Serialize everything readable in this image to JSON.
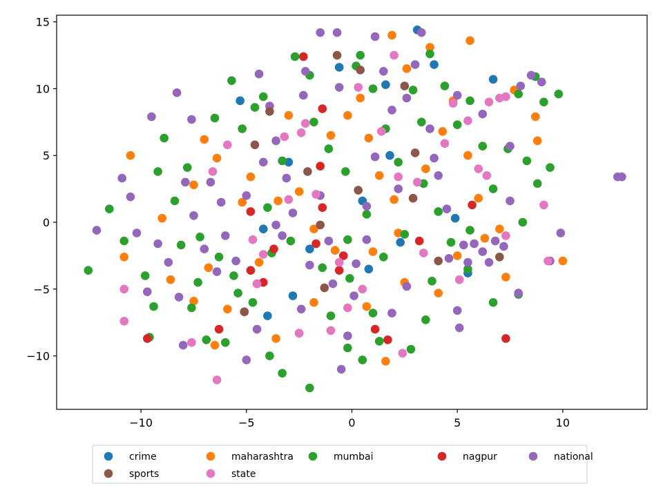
{
  "chart_data": {
    "type": "scatter",
    "title": "",
    "xlabel": "",
    "ylabel": "",
    "xlim": [
      -14,
      14
    ],
    "ylim": [
      -14,
      15.5
    ],
    "xticks": [
      -10,
      -5,
      0,
      5,
      10
    ],
    "yticks": [
      -10,
      -5,
      0,
      5,
      10,
      15
    ],
    "xtick_labels": [
      "−10",
      "−5",
      "0",
      "5",
      "10"
    ],
    "ytick_labels": [
      "−10",
      "−5",
      "0",
      "5",
      "10",
      "15"
    ],
    "grid": false,
    "legend_position": "bottom-center",
    "series": [
      {
        "name": "crime",
        "color": "#1f77b4",
        "points": [
          [
            -5.3,
            9.1
          ],
          [
            -0.6,
            11.6
          ],
          [
            1.6,
            10.3
          ],
          [
            3.1,
            14.4
          ],
          [
            3.9,
            11.8
          ],
          [
            6.7,
            10.7
          ],
          [
            4.9,
            0.3
          ],
          [
            5.5,
            -3.8
          ],
          [
            -3.0,
            4.5
          ],
          [
            -4.2,
            -0.5
          ],
          [
            -4.0,
            -7.0
          ],
          [
            -2.8,
            -5.5
          ],
          [
            1.8,
            5.0
          ],
          [
            0.5,
            1.6
          ],
          [
            2.3,
            -1.5
          ],
          [
            -2.0,
            -2.0
          ],
          [
            0.8,
            -3.5
          ]
        ]
      },
      {
        "name": "maharashtra",
        "color": "#ff7f0e",
        "points": [
          [
            -10.5,
            5.0
          ],
          [
            -9.0,
            0.3
          ],
          [
            -10.8,
            -2.6
          ],
          [
            -7.0,
            6.2
          ],
          [
            -6.4,
            4.8
          ],
          [
            -5.2,
            1.5
          ],
          [
            -6.8,
            -3.4
          ],
          [
            -5.9,
            -6.5
          ],
          [
            -6.5,
            -9.2
          ],
          [
            -4.5,
            -4.6
          ],
          [
            -3.6,
            -8.7
          ],
          [
            -1.8,
            -6.0
          ],
          [
            -2.5,
            2.3
          ],
          [
            -1.0,
            6.5
          ],
          [
            -0.2,
            8.0
          ],
          [
            0.8,
            6.3
          ],
          [
            1.3,
            3.5
          ],
          [
            2.0,
            1.7
          ],
          [
            3.5,
            4.0
          ],
          [
            4.3,
            6.8
          ],
          [
            5.5,
            5.0
          ],
          [
            6.0,
            1.8
          ],
          [
            7.3,
            -4.1
          ],
          [
            7.7,
            9.9
          ],
          [
            8.8,
            6.1
          ],
          [
            10.0,
            -2.9
          ],
          [
            1.9,
            14.0
          ],
          [
            3.7,
            13.1
          ],
          [
            5.6,
            13.6
          ],
          [
            -3.0,
            8.0
          ],
          [
            -7.5,
            2.8
          ],
          [
            -8.6,
            -4.3
          ],
          [
            -7.5,
            -5.9
          ],
          [
            -4.4,
            -3.0
          ],
          [
            -1.8,
            -0.5
          ],
          [
            1.0,
            -2.2
          ],
          [
            2.5,
            -4.5
          ],
          [
            4.1,
            -5.3
          ],
          [
            5.0,
            -2.5
          ],
          [
            6.3,
            -1.2
          ],
          [
            7.0,
            -0.5
          ],
          [
            1.6,
            -10.4
          ],
          [
            0.7,
            -6.3
          ],
          [
            -0.8,
            -2.1
          ],
          [
            2.2,
            -0.8
          ],
          [
            -3.5,
            1.6
          ],
          [
            -4.8,
            3.4
          ],
          [
            0.4,
            9.3
          ],
          [
            2.6,
            11.5
          ],
          [
            4.8,
            9.1
          ],
          [
            8.7,
            7.9
          ]
        ]
      },
      {
        "name": "mumbai",
        "color": "#2ca02c",
        "points": [
          [
            -12.5,
            -3.6
          ],
          [
            -11.5,
            1.0
          ],
          [
            -10.8,
            -1.4
          ],
          [
            -9.8,
            -4.0
          ],
          [
            -9.4,
            -6.3
          ],
          [
            -9.6,
            -8.6
          ],
          [
            -8.9,
            6.3
          ],
          [
            -9.2,
            3.8
          ],
          [
            -8.4,
            1.6
          ],
          [
            -7.8,
            4.1
          ],
          [
            -7.2,
            -1.1
          ],
          [
            -7.6,
            -6.4
          ],
          [
            -6.9,
            -8.8
          ],
          [
            -6.0,
            -9.0
          ],
          [
            -5.4,
            -5.3
          ],
          [
            -5.2,
            7.0
          ],
          [
            -4.6,
            8.6
          ],
          [
            -4.2,
            9.4
          ],
          [
            -3.3,
            4.6
          ],
          [
            -2.7,
            12.4
          ],
          [
            -2.0,
            11.0
          ],
          [
            -1.8,
            7.5
          ],
          [
            -1.1,
            5.5
          ],
          [
            -0.3,
            3.8
          ],
          [
            0.2,
            11.7
          ],
          [
            0.4,
            12.5
          ],
          [
            1.0,
            10.0
          ],
          [
            1.6,
            7.0
          ],
          [
            2.2,
            4.5
          ],
          [
            2.9,
            9.9
          ],
          [
            3.3,
            7.5
          ],
          [
            3.7,
            12.6
          ],
          [
            4.4,
            10.2
          ],
          [
            5.0,
            7.3
          ],
          [
            5.6,
            9.1
          ],
          [
            6.2,
            5.7
          ],
          [
            6.7,
            2.5
          ],
          [
            7.4,
            5.5
          ],
          [
            7.9,
            9.6
          ],
          [
            8.3,
            4.6
          ],
          [
            8.7,
            10.9
          ],
          [
            9.1,
            9.0
          ],
          [
            9.4,
            4.1
          ],
          [
            8.8,
            2.9
          ],
          [
            8.1,
            0.0
          ],
          [
            7.9,
            -5.4
          ],
          [
            6.7,
            -6.0
          ],
          [
            5.5,
            -3.5
          ],
          [
            4.7,
            -1.5
          ],
          [
            3.8,
            -4.4
          ],
          [
            3.5,
            -7.3
          ],
          [
            2.8,
            -9.5
          ],
          [
            1.3,
            -8.9
          ],
          [
            0.5,
            -10.3
          ],
          [
            -0.2,
            -9.4
          ],
          [
            -1.0,
            -7.0
          ],
          [
            -2.0,
            -12.4
          ],
          [
            -2.5,
            -8.3
          ],
          [
            -3.3,
            -11.3
          ],
          [
            -3.9,
            -10.0
          ],
          [
            -4.7,
            -6.0
          ],
          [
            -5.6,
            -4.0
          ],
          [
            -6.3,
            -2.6
          ],
          [
            -7.3,
            -4.5
          ],
          [
            -8.1,
            -1.7
          ],
          [
            -4.0,
            1.1
          ],
          [
            -2.9,
            -1.4
          ],
          [
            -1.4,
            -3.4
          ],
          [
            -0.2,
            -1.3
          ],
          [
            0.7,
            0.6
          ],
          [
            1.5,
            -2.6
          ],
          [
            2.5,
            -0.9
          ],
          [
            3.4,
            2.9
          ],
          [
            4.1,
            0.8
          ],
          [
            5.6,
            -0.6
          ],
          [
            -6.5,
            7.8
          ],
          [
            -5.7,
            10.6
          ],
          [
            9.8,
            9.6
          ],
          [
            -0.1,
            -4.2
          ],
          [
            1.0,
            -6.8
          ],
          [
            -3.8,
            -2.3
          ]
        ]
      },
      {
        "name": "nagpur",
        "color": "#d62728",
        "points": [
          [
            -9.7,
            -8.7
          ],
          [
            -6.3,
            -8.0
          ],
          [
            -5.1,
            -6.7
          ],
          [
            -4.8,
            -3.6
          ],
          [
            -4.2,
            -4.5
          ],
          [
            -3.7,
            -2.0
          ],
          [
            -4.8,
            0.8
          ],
          [
            -2.3,
            12.4
          ],
          [
            -1.4,
            8.5
          ],
          [
            -1.4,
            1.1
          ],
          [
            -1.5,
            4.2
          ],
          [
            -1.7,
            -1.6
          ],
          [
            -0.6,
            -3.6
          ],
          [
            -0.4,
            -2.5
          ],
          [
            1.1,
            -8.0
          ],
          [
            1.7,
            -8.8
          ],
          [
            3.2,
            -1.4
          ],
          [
            5.7,
            1.3
          ],
          [
            7.3,
            -8.7
          ]
        ]
      },
      {
        "name": "national",
        "color": "#9467bd",
        "points": [
          [
            -12.1,
            -0.6
          ],
          [
            -10.5,
            1.9
          ],
          [
            -10.2,
            -0.8
          ],
          [
            -9.7,
            -5.2
          ],
          [
            -9.2,
            -1.6
          ],
          [
            -8.7,
            -3.0
          ],
          [
            -8.2,
            -5.6
          ],
          [
            -8.0,
            -9.2
          ],
          [
            -7.5,
            0.5
          ],
          [
            -7.0,
            -2.0
          ],
          [
            -6.4,
            -3.7
          ],
          [
            -6.0,
            -1.0
          ],
          [
            -5.5,
            -2.9
          ],
          [
            -5.0,
            -10.3
          ],
          [
            -4.5,
            -8.0
          ],
          [
            -4.4,
            11.1
          ],
          [
            -3.9,
            8.7
          ],
          [
            -3.6,
            6.1
          ],
          [
            -3.3,
            -1.0
          ],
          [
            -2.4,
            -6.5
          ],
          [
            -2.0,
            -3.2
          ],
          [
            -2.3,
            9.5
          ],
          [
            -2.2,
            11.3
          ],
          [
            -1.5,
            14.2
          ],
          [
            -1.5,
            2.0
          ],
          [
            -1.1,
            -1.4
          ],
          [
            -0.5,
            -11.0
          ],
          [
            -0.7,
            14.2
          ],
          [
            -0.6,
            10.1
          ],
          [
            -0.2,
            -8.5
          ],
          [
            0.2,
            -3.1
          ],
          [
            0.7,
            -1.3
          ],
          [
            0.7,
            1.2
          ],
          [
            1.1,
            4.9
          ],
          [
            1.1,
            13.9
          ],
          [
            1.5,
            11.3
          ],
          [
            1.9,
            8.4
          ],
          [
            2.2,
            2.5
          ],
          [
            2.6,
            9.3
          ],
          [
            3.0,
            11.8
          ],
          [
            3.3,
            14.2
          ],
          [
            3.7,
            7.0
          ],
          [
            4.1,
            3.5
          ],
          [
            4.5,
            1.0
          ],
          [
            4.6,
            -2.7
          ],
          [
            5.0,
            -6.6
          ],
          [
            5.1,
            -7.9
          ],
          [
            5.3,
            -1.7
          ],
          [
            5.5,
            -3.0
          ],
          [
            5.8,
            -1.6
          ],
          [
            6.2,
            -2.2
          ],
          [
            6.5,
            -3.0
          ],
          [
            6.8,
            -1.4
          ],
          [
            7.2,
            -1.8
          ],
          [
            7.5,
            1.6
          ],
          [
            8.0,
            10.2
          ],
          [
            8.5,
            11.0
          ],
          [
            9.0,
            10.5
          ],
          [
            9.4,
            -2.9
          ],
          [
            9.9,
            -0.8
          ],
          [
            12.6,
            3.4
          ],
          [
            12.8,
            3.4
          ],
          [
            7.9,
            -5.3
          ],
          [
            7.5,
            5.7
          ],
          [
            6.2,
            8.1
          ],
          [
            5.0,
            9.5
          ],
          [
            3.9,
            4.8
          ],
          [
            2.6,
            -4.8
          ],
          [
            1.9,
            -6.8
          ],
          [
            0.1,
            -5.5
          ],
          [
            -0.9,
            -4.6
          ],
          [
            -2.8,
            0.7
          ],
          [
            -3.1,
            3.3
          ],
          [
            -3.6,
            -0.2
          ],
          [
            -4.2,
            4.5
          ],
          [
            -5.0,
            2.0
          ],
          [
            -6.2,
            1.5
          ],
          [
            -6.7,
            3.0
          ],
          [
            -7.9,
            3.0
          ],
          [
            -8.3,
            9.7
          ],
          [
            -9.5,
            7.9
          ],
          [
            -7.6,
            7.7
          ],
          [
            -10.9,
            3.3
          ]
        ]
      },
      {
        "name": "sports",
        "color": "#8c564b",
        "points": [
          [
            -4.6,
            5.8
          ],
          [
            -3.9,
            8.3
          ],
          [
            -2.1,
            3.8
          ],
          [
            -0.7,
            12.5
          ],
          [
            0.4,
            11.4
          ],
          [
            2.5,
            10.2
          ],
          [
            3.0,
            5.2
          ],
          [
            2.9,
            1.8
          ],
          [
            0.3,
            2.4
          ],
          [
            4.1,
            -2.9
          ],
          [
            7.0,
            -2.6
          ],
          [
            -5.1,
            -6.7
          ],
          [
            -1.3,
            -4.9
          ],
          [
            -1.5,
            -0.2
          ]
        ]
      },
      {
        "name": "state",
        "color": "#e377c2",
        "points": [
          [
            -10.8,
            -5.0
          ],
          [
            -10.8,
            -7.4
          ],
          [
            -6.6,
            3.8
          ],
          [
            -6.4,
            -11.8
          ],
          [
            -5.9,
            5.8
          ],
          [
            -4.7,
            -1.3
          ],
          [
            -4.5,
            -4.6
          ],
          [
            -4.2,
            -2.4
          ],
          [
            -3.2,
            6.4
          ],
          [
            -2.4,
            6.7
          ],
          [
            -2.2,
            7.4
          ],
          [
            -1.7,
            2.1
          ],
          [
            -1.0,
            -8.1
          ],
          [
            -0.2,
            -6.4
          ],
          [
            0.3,
            10.1
          ],
          [
            1.4,
            6.8
          ],
          [
            2.2,
            3.4
          ],
          [
            2.4,
            -9.8
          ],
          [
            3.1,
            3.0
          ],
          [
            3.4,
            -2.3
          ],
          [
            4.4,
            5.9
          ],
          [
            4.8,
            8.9
          ],
          [
            5.1,
            -4.3
          ],
          [
            6.0,
            4.0
          ],
          [
            6.4,
            3.5
          ],
          [
            6.5,
            9.0
          ],
          [
            7.0,
            9.3
          ],
          [
            7.3,
            9.4
          ],
          [
            7.3,
            -1.0
          ],
          [
            9.1,
            1.3
          ],
          [
            9.3,
            -2.9
          ],
          [
            -7.6,
            -9.0
          ],
          [
            -2.5,
            -8.3
          ],
          [
            0.5,
            -5.0
          ],
          [
            -0.6,
            -3.0
          ],
          [
            -3.0,
            1.7
          ],
          [
            5.5,
            7.6
          ],
          [
            2.0,
            12.5
          ]
        ]
      }
    ]
  }
}
